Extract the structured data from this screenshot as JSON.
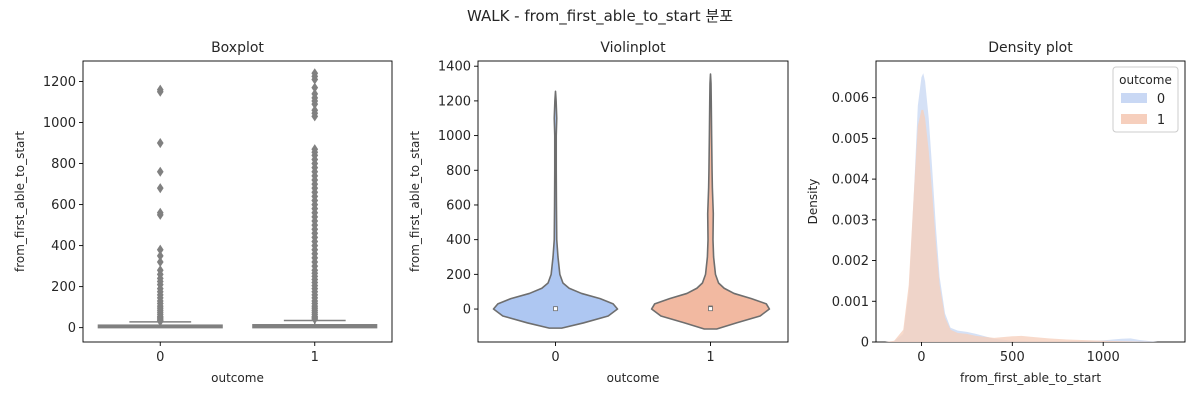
{
  "suptitle": "WALK - from_first_able_to_start 분포",
  "colors": {
    "class0": "#aec7f2",
    "class1": "#f2b9a1",
    "box": "#808080",
    "line": "#6e6e6e",
    "kde0": "#c9d8f4",
    "kde1": "#f6cfbd",
    "kde_overlap": "#d3c6e0"
  },
  "chart_data": [
    {
      "type": "box",
      "title": "Boxplot",
      "xlabel": "outcome",
      "ylabel": "from_first_able_to_start",
      "categories": [
        "0",
        "1"
      ],
      "ylim": [
        -70,
        1300
      ],
      "yticks": [
        0,
        200,
        400,
        600,
        800,
        1000,
        1200
      ],
      "boxes": [
        {
          "category": "0",
          "q1": 0,
          "median": 5,
          "q3": 12,
          "whisker_low": 0,
          "whisker_high": 28,
          "outliers": [
            1160,
            1150,
            900,
            760,
            680,
            560,
            550,
            380,
            350,
            320,
            280,
            260,
            240,
            225,
            210,
            190,
            175,
            160,
            145,
            130,
            118,
            105,
            95,
            85,
            75,
            65,
            55,
            48,
            42,
            36,
            31
          ]
        },
        {
          "category": "1",
          "q1": 0,
          "median": 5,
          "q3": 14,
          "whisker_low": 0,
          "whisker_high": 35,
          "outliers": [
            1240,
            1225,
            1210,
            1170,
            1140,
            1120,
            1105,
            1090,
            1060,
            1045,
            1030,
            870,
            855,
            840,
            820,
            800,
            780,
            760,
            740,
            720,
            700,
            680,
            660,
            640,
            620,
            600,
            580,
            560,
            540,
            520,
            500,
            480,
            460,
            440,
            420,
            400,
            380,
            360,
            340,
            320,
            300,
            280,
            265,
            250,
            235,
            220,
            205,
            190,
            175,
            160,
            145,
            130,
            118,
            105,
            95,
            85,
            75,
            65,
            55,
            48,
            42
          ]
        }
      ]
    },
    {
      "type": "violin",
      "title": "Violinplot",
      "xlabel": "outcome",
      "ylabel": "from_first_able_to_start",
      "categories": [
        "0",
        "1"
      ],
      "ylim": [
        -190,
        1430
      ],
      "yticks": [
        0,
        200,
        400,
        600,
        800,
        1000,
        1200,
        1400
      ],
      "violins": [
        {
          "category": "0",
          "ymin": -110,
          "ymax": 1255,
          "median": 2,
          "q1": -5,
          "q3": 15,
          "profile": [
            [
              -110,
              0.1
            ],
            [
              -80,
              0.45
            ],
            [
              -40,
              0.85
            ],
            [
              0,
              1.0
            ],
            [
              30,
              0.93
            ],
            [
              60,
              0.72
            ],
            [
              90,
              0.42
            ],
            [
              120,
              0.22
            ],
            [
              150,
              0.12
            ],
            [
              200,
              0.07
            ],
            [
              300,
              0.04
            ],
            [
              400,
              0.02
            ],
            [
              600,
              0.015
            ],
            [
              800,
              0.012
            ],
            [
              1000,
              0.012
            ],
            [
              1100,
              0.02
            ],
            [
              1200,
              0.01
            ],
            [
              1255,
              0.0
            ]
          ]
        },
        {
          "category": "1",
          "ymin": -115,
          "ymax": 1355,
          "median": 2,
          "q1": -5,
          "q3": 20,
          "profile": [
            [
              -115,
              0.1
            ],
            [
              -80,
              0.42
            ],
            [
              -40,
              0.8
            ],
            [
              0,
              0.95
            ],
            [
              30,
              0.9
            ],
            [
              60,
              0.66
            ],
            [
              90,
              0.38
            ],
            [
              120,
              0.22
            ],
            [
              150,
              0.13
            ],
            [
              200,
              0.08
            ],
            [
              300,
              0.05
            ],
            [
              400,
              0.04
            ],
            [
              550,
              0.045
            ],
            [
              700,
              0.03
            ],
            [
              800,
              0.025
            ],
            [
              1000,
              0.018
            ],
            [
              1200,
              0.012
            ],
            [
              1300,
              0.008
            ],
            [
              1355,
              0.0
            ]
          ]
        }
      ]
    },
    {
      "type": "area",
      "title": "Density plot",
      "xlabel": "from_first_able_to_start",
      "ylabel": "Density",
      "xlim": [
        -250,
        1450
      ],
      "ylim": [
        0,
        0.0069
      ],
      "xticks": [
        0,
        500,
        1000
      ],
      "yticks": [
        0.0,
        0.001,
        0.002,
        0.003,
        0.004,
        0.005,
        0.006
      ],
      "ytick_labels": [
        "0.000",
        "0.001",
        "0.002",
        "0.003",
        "0.004",
        "0.005",
        "0.006"
      ],
      "legend_title": "outcome",
      "legend_position": "top-right",
      "series": [
        {
          "name": "0",
          "x": [
            -200,
            -150,
            -100,
            -70,
            -40,
            -20,
            0,
            10,
            20,
            40,
            60,
            80,
            100,
            130,
            160,
            200,
            250,
            300,
            400,
            500,
            600,
            800,
            1000,
            1100,
            1150,
            1200,
            1300
          ],
          "y": [
            0.0,
            2e-05,
            0.0002,
            0.0012,
            0.0038,
            0.0058,
            0.0065,
            0.0066,
            0.0064,
            0.0055,
            0.0042,
            0.0028,
            0.0016,
            0.0007,
            0.00035,
            0.00028,
            0.00025,
            0.0002,
            8e-05,
            3e-05,
            2e-05,
            2e-05,
            4e-05,
            8e-05,
            9e-05,
            5e-05,
            0.0
          ]
        },
        {
          "name": "1",
          "x": [
            -200,
            -150,
            -100,
            -70,
            -40,
            -20,
            0,
            10,
            20,
            40,
            60,
            80,
            100,
            130,
            160,
            200,
            250,
            300,
            400,
            500,
            550,
            600,
            700,
            800,
            1000,
            1200,
            1300
          ],
          "y": [
            0.0,
            3e-05,
            0.0003,
            0.0014,
            0.0038,
            0.0053,
            0.0057,
            0.0057,
            0.0055,
            0.0047,
            0.0036,
            0.0024,
            0.0014,
            0.0006,
            0.0003,
            0.00022,
            0.0002,
            0.00015,
            0.0001,
            0.00014,
            0.00015,
            0.00013,
            9e-05,
            6e-05,
            3e-05,
            1e-05,
            0.0
          ]
        }
      ]
    }
  ]
}
